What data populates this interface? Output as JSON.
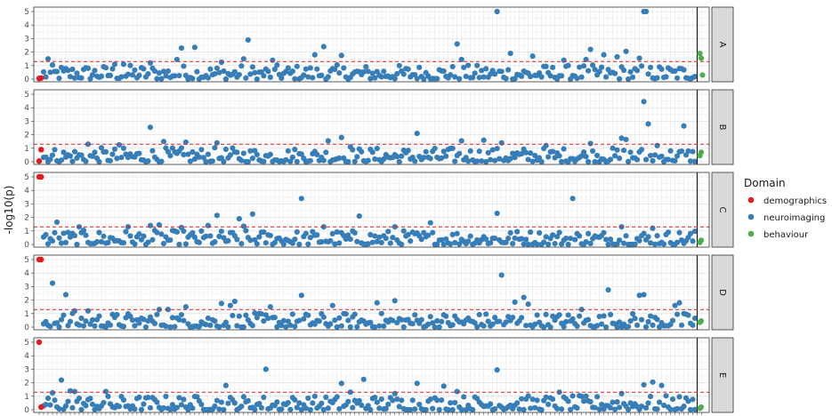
{
  "chart_data": {
    "type": "scatter",
    "title": "",
    "ylabel": "-log10(p)",
    "ylim": [
      0,
      5
    ],
    "yticks": [
      0,
      1,
      2,
      3,
      4,
      5
    ],
    "threshold": 1.3,
    "threshold_color": "#e41a1c",
    "grid": true,
    "legend": {
      "title": "Domain",
      "placement": "right",
      "entries": [
        {
          "label": "demographics",
          "color": "#e41a1c"
        },
        {
          "label": "neuroimaging",
          "color": "#377eb8"
        },
        {
          "label": "behaviour",
          "color": "#4daf4a"
        }
      ]
    },
    "x_count": 300,
    "x_separator": 296,
    "facets": [
      {
        "label": "A",
        "demographics": [
          0.05,
          0.08
        ],
        "behaviour": [
          1.9,
          1.55,
          0.3
        ],
        "highlights": [
          [
            4,
            1.5
          ],
          [
            34,
            1.1
          ],
          [
            38,
            1.1
          ],
          [
            50,
            1.2
          ],
          [
            62,
            1.45
          ],
          [
            64,
            2.3
          ],
          [
            70,
            2.35
          ],
          [
            82,
            1.25
          ],
          [
            92,
            1.5
          ],
          [
            94,
            2.9
          ],
          [
            105,
            1.4
          ],
          [
            124,
            1.8
          ],
          [
            128,
            2.4
          ],
          [
            136,
            1.75
          ],
          [
            188,
            2.6
          ],
          [
            190,
            1.45
          ],
          [
            206,
            5.0
          ],
          [
            212,
            1.9
          ],
          [
            222,
            1.7
          ],
          [
            236,
            1.4
          ],
          [
            246,
            1.45
          ],
          [
            248,
            2.2
          ],
          [
            254,
            1.8
          ],
          [
            260,
            1.65
          ],
          [
            264,
            2.05
          ],
          [
            270,
            1.55
          ],
          [
            272,
            5.0
          ],
          [
            273,
            5.0
          ]
        ]
      },
      {
        "label": "B",
        "demographics": [
          0.05,
          0.9
        ],
        "behaviour": [
          0.45,
          0.7
        ],
        "highlights": [
          [
            22,
            1.3
          ],
          [
            36,
            1.25
          ],
          [
            50,
            2.55
          ],
          [
            56,
            1.5
          ],
          [
            66,
            1.45
          ],
          [
            80,
            1.4
          ],
          [
            130,
            1.55
          ],
          [
            136,
            1.8
          ],
          [
            140,
            1.1
          ],
          [
            170,
            2.1
          ],
          [
            190,
            1.55
          ],
          [
            200,
            1.6
          ],
          [
            208,
            1.4
          ],
          [
            228,
            1.2
          ],
          [
            248,
            1.35
          ],
          [
            262,
            1.75
          ],
          [
            264,
            1.65
          ],
          [
            272,
            4.45
          ],
          [
            274,
            2.8
          ],
          [
            278,
            1.2
          ],
          [
            290,
            2.65
          ]
        ]
      },
      {
        "label": "C",
        "demographics": [
          5.0,
          5.0
        ],
        "behaviour": [
          0.15,
          0.3
        ],
        "highlights": [
          [
            8,
            1.65
          ],
          [
            18,
            1.3
          ],
          [
            40,
            1.3
          ],
          [
            50,
            1.4
          ],
          [
            54,
            1.45
          ],
          [
            64,
            1.25
          ],
          [
            76,
            1.4
          ],
          [
            80,
            2.15
          ],
          [
            90,
            1.9
          ],
          [
            92,
            1.35
          ],
          [
            96,
            2.25
          ],
          [
            118,
            3.4
          ],
          [
            128,
            1.3
          ],
          [
            144,
            2.1
          ],
          [
            160,
            1.3
          ],
          [
            176,
            1.6
          ],
          [
            206,
            2.3
          ],
          [
            240,
            3.4
          ],
          [
            262,
            1.3
          ],
          [
            276,
            1.2
          ]
        ]
      },
      {
        "label": "D",
        "demographics": [
          5.0,
          5.0
        ],
        "behaviour": [
          0.35,
          0.45
        ],
        "highlights": [
          [
            6,
            3.25
          ],
          [
            12,
            2.4
          ],
          [
            16,
            1.2
          ],
          [
            22,
            1.2
          ],
          [
            54,
            1.3
          ],
          [
            58,
            1.3
          ],
          [
            66,
            1.5
          ],
          [
            82,
            1.75
          ],
          [
            86,
            1.6
          ],
          [
            88,
            1.9
          ],
          [
            104,
            1.5
          ],
          [
            118,
            2.35
          ],
          [
            132,
            1.6
          ],
          [
            152,
            1.8
          ],
          [
            160,
            1.95
          ],
          [
            208,
            3.85
          ],
          [
            214,
            1.85
          ],
          [
            218,
            2.2
          ],
          [
            220,
            1.7
          ],
          [
            244,
            1.3
          ],
          [
            256,
            2.75
          ],
          [
            270,
            2.35
          ],
          [
            272,
            2.4
          ],
          [
            286,
            1.6
          ],
          [
            288,
            1.8
          ]
        ]
      },
      {
        "label": "E",
        "demographics": [
          5.0,
          0.2
        ],
        "behaviour": [
          0.1,
          0.2
        ],
        "highlights": [
          [
            6,
            1.25
          ],
          [
            10,
            2.2
          ],
          [
            14,
            1.4
          ],
          [
            16,
            1.35
          ],
          [
            30,
            1.35
          ],
          [
            84,
            1.8
          ],
          [
            102,
            3.0
          ],
          [
            136,
            1.95
          ],
          [
            140,
            1.3
          ],
          [
            146,
            2.25
          ],
          [
            160,
            1.2
          ],
          [
            170,
            1.95
          ],
          [
            182,
            1.75
          ],
          [
            188,
            1.35
          ],
          [
            206,
            2.95
          ],
          [
            234,
            1.3
          ],
          [
            262,
            1.2
          ],
          [
            272,
            1.85
          ],
          [
            276,
            2.05
          ],
          [
            280,
            1.8
          ]
        ]
      }
    ]
  }
}
